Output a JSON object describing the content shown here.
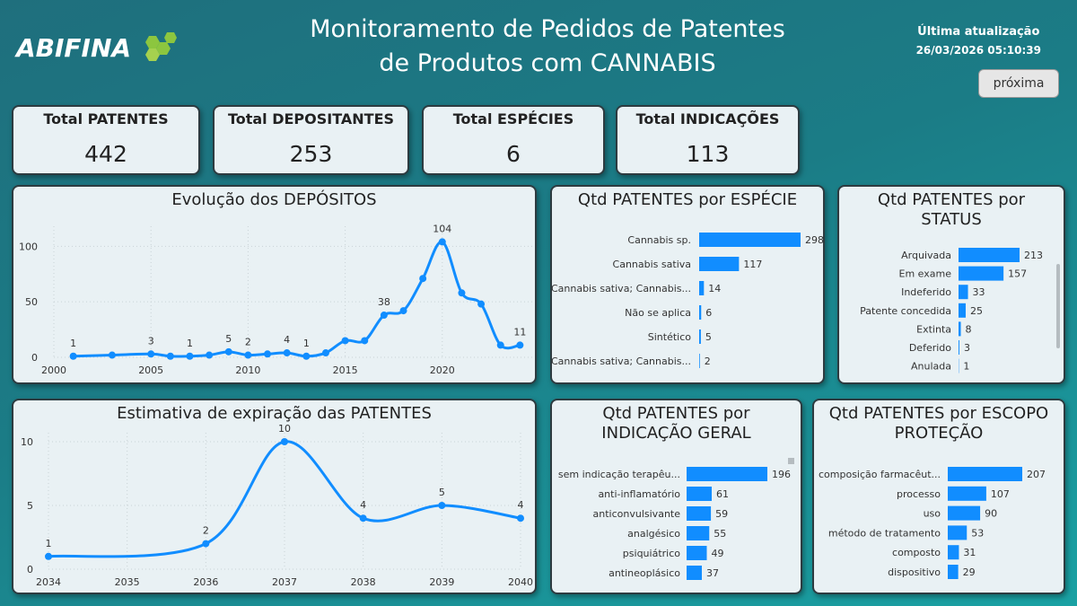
{
  "header": {
    "logo": "ABIFINA",
    "title": [
      "Monitoramento de Pedidos de Patentes",
      "de Produtos com CANNABIS"
    ],
    "update_label": "Última atualização",
    "update_time": "26/03/2026 05:10:39",
    "button": "próxima"
  },
  "kpis": [
    {
      "label": "Total PATENTES",
      "value": 442
    },
    {
      "label": "Total DEPOSITANTES",
      "value": 253
    },
    {
      "label": "Total ESPÉCIES",
      "value": 6
    },
    {
      "label": "Total INDICAÇÕES",
      "value": 113
    }
  ],
  "chart_data": [
    {
      "type": "line",
      "title": "Evolução dos DEPÓSITOS",
      "color": "#118dff",
      "grid": true,
      "x": [
        2001,
        2003,
        2005,
        2006,
        2007,
        2008,
        2009,
        2010,
        2011,
        2012,
        2013,
        2014,
        2015,
        2016,
        2017,
        2018,
        2019,
        2020,
        2021,
        2022,
        2023,
        2024
      ],
      "values": [
        1,
        2,
        3,
        1,
        1,
        2,
        5,
        2,
        3,
        4,
        1,
        4,
        15,
        15,
        38,
        42,
        71,
        104,
        58,
        48,
        11,
        11
      ],
      "value_labels": [
        "1",
        null,
        "3",
        null,
        "1",
        null,
        "5",
        "2",
        null,
        "4",
        "1",
        null,
        null,
        null,
        "38",
        null,
        null,
        "104",
        null,
        null,
        null,
        "11"
      ],
      "xlim": [
        2000,
        2025
      ],
      "xticks": [
        2000,
        2005,
        2010,
        2015,
        2020
      ],
      "ylim": [
        0,
        110
      ],
      "yticks": [
        0,
        50,
        100
      ]
    },
    {
      "type": "hbar",
      "title": "Qtd PATENTES por ESPÉCIE",
      "color": "#118dff",
      "categories": [
        "Cannabis sp.",
        "Cannabis sativa",
        "Cannabis sativa; Cannabis...",
        "Não se aplica",
        "Sintético",
        "Cannabis sativa; Cannabis..."
      ],
      "values": [
        298,
        117,
        14,
        6,
        5,
        2
      ]
    },
    {
      "type": "hbar",
      "title": "Qtd PATENTES por STATUS",
      "color": "#118dff",
      "categories": [
        "Arquivada",
        "Em exame",
        "Indeferido",
        "Patente concedida",
        "Extinta",
        "Deferido",
        "Anulada"
      ],
      "values": [
        213,
        157,
        33,
        25,
        8,
        3,
        1
      ]
    },
    {
      "type": "line",
      "title": "Estimativa de expiração das PATENTES",
      "color": "#118dff",
      "grid": true,
      "x": [
        2034,
        2036,
        2037,
        2038,
        2039,
        2040
      ],
      "values": [
        1,
        2,
        10,
        4,
        5,
        4
      ],
      "value_labels": [
        "1",
        "2",
        "10",
        "4",
        "5",
        "4"
      ],
      "xlim": [
        2034,
        2040
      ],
      "xticks": [
        2034,
        2035,
        2036,
        2037,
        2038,
        2039,
        2040
      ],
      "ylim": [
        0,
        10
      ],
      "yticks": [
        0,
        5,
        10
      ]
    },
    {
      "type": "hbar",
      "title": "Qtd PATENTES por INDICAÇÃO GERAL",
      "color": "#118dff",
      "categories": [
        "sem indicação terapêu...",
        "anti-inflamatório",
        "anticonvulsivante",
        "analgésico",
        "psiquiátrico",
        "antineoplásico"
      ],
      "values": [
        196,
        61,
        59,
        55,
        49,
        37
      ]
    },
    {
      "type": "hbar",
      "title": "Qtd PATENTES por ESCOPO PROTEÇÃO",
      "color": "#118dff",
      "categories": [
        "composição farmacêut...",
        "processo",
        "uso",
        "método de tratamento",
        "composto",
        "dispositivo"
      ],
      "values": [
        207,
        107,
        90,
        53,
        31,
        29
      ]
    }
  ]
}
